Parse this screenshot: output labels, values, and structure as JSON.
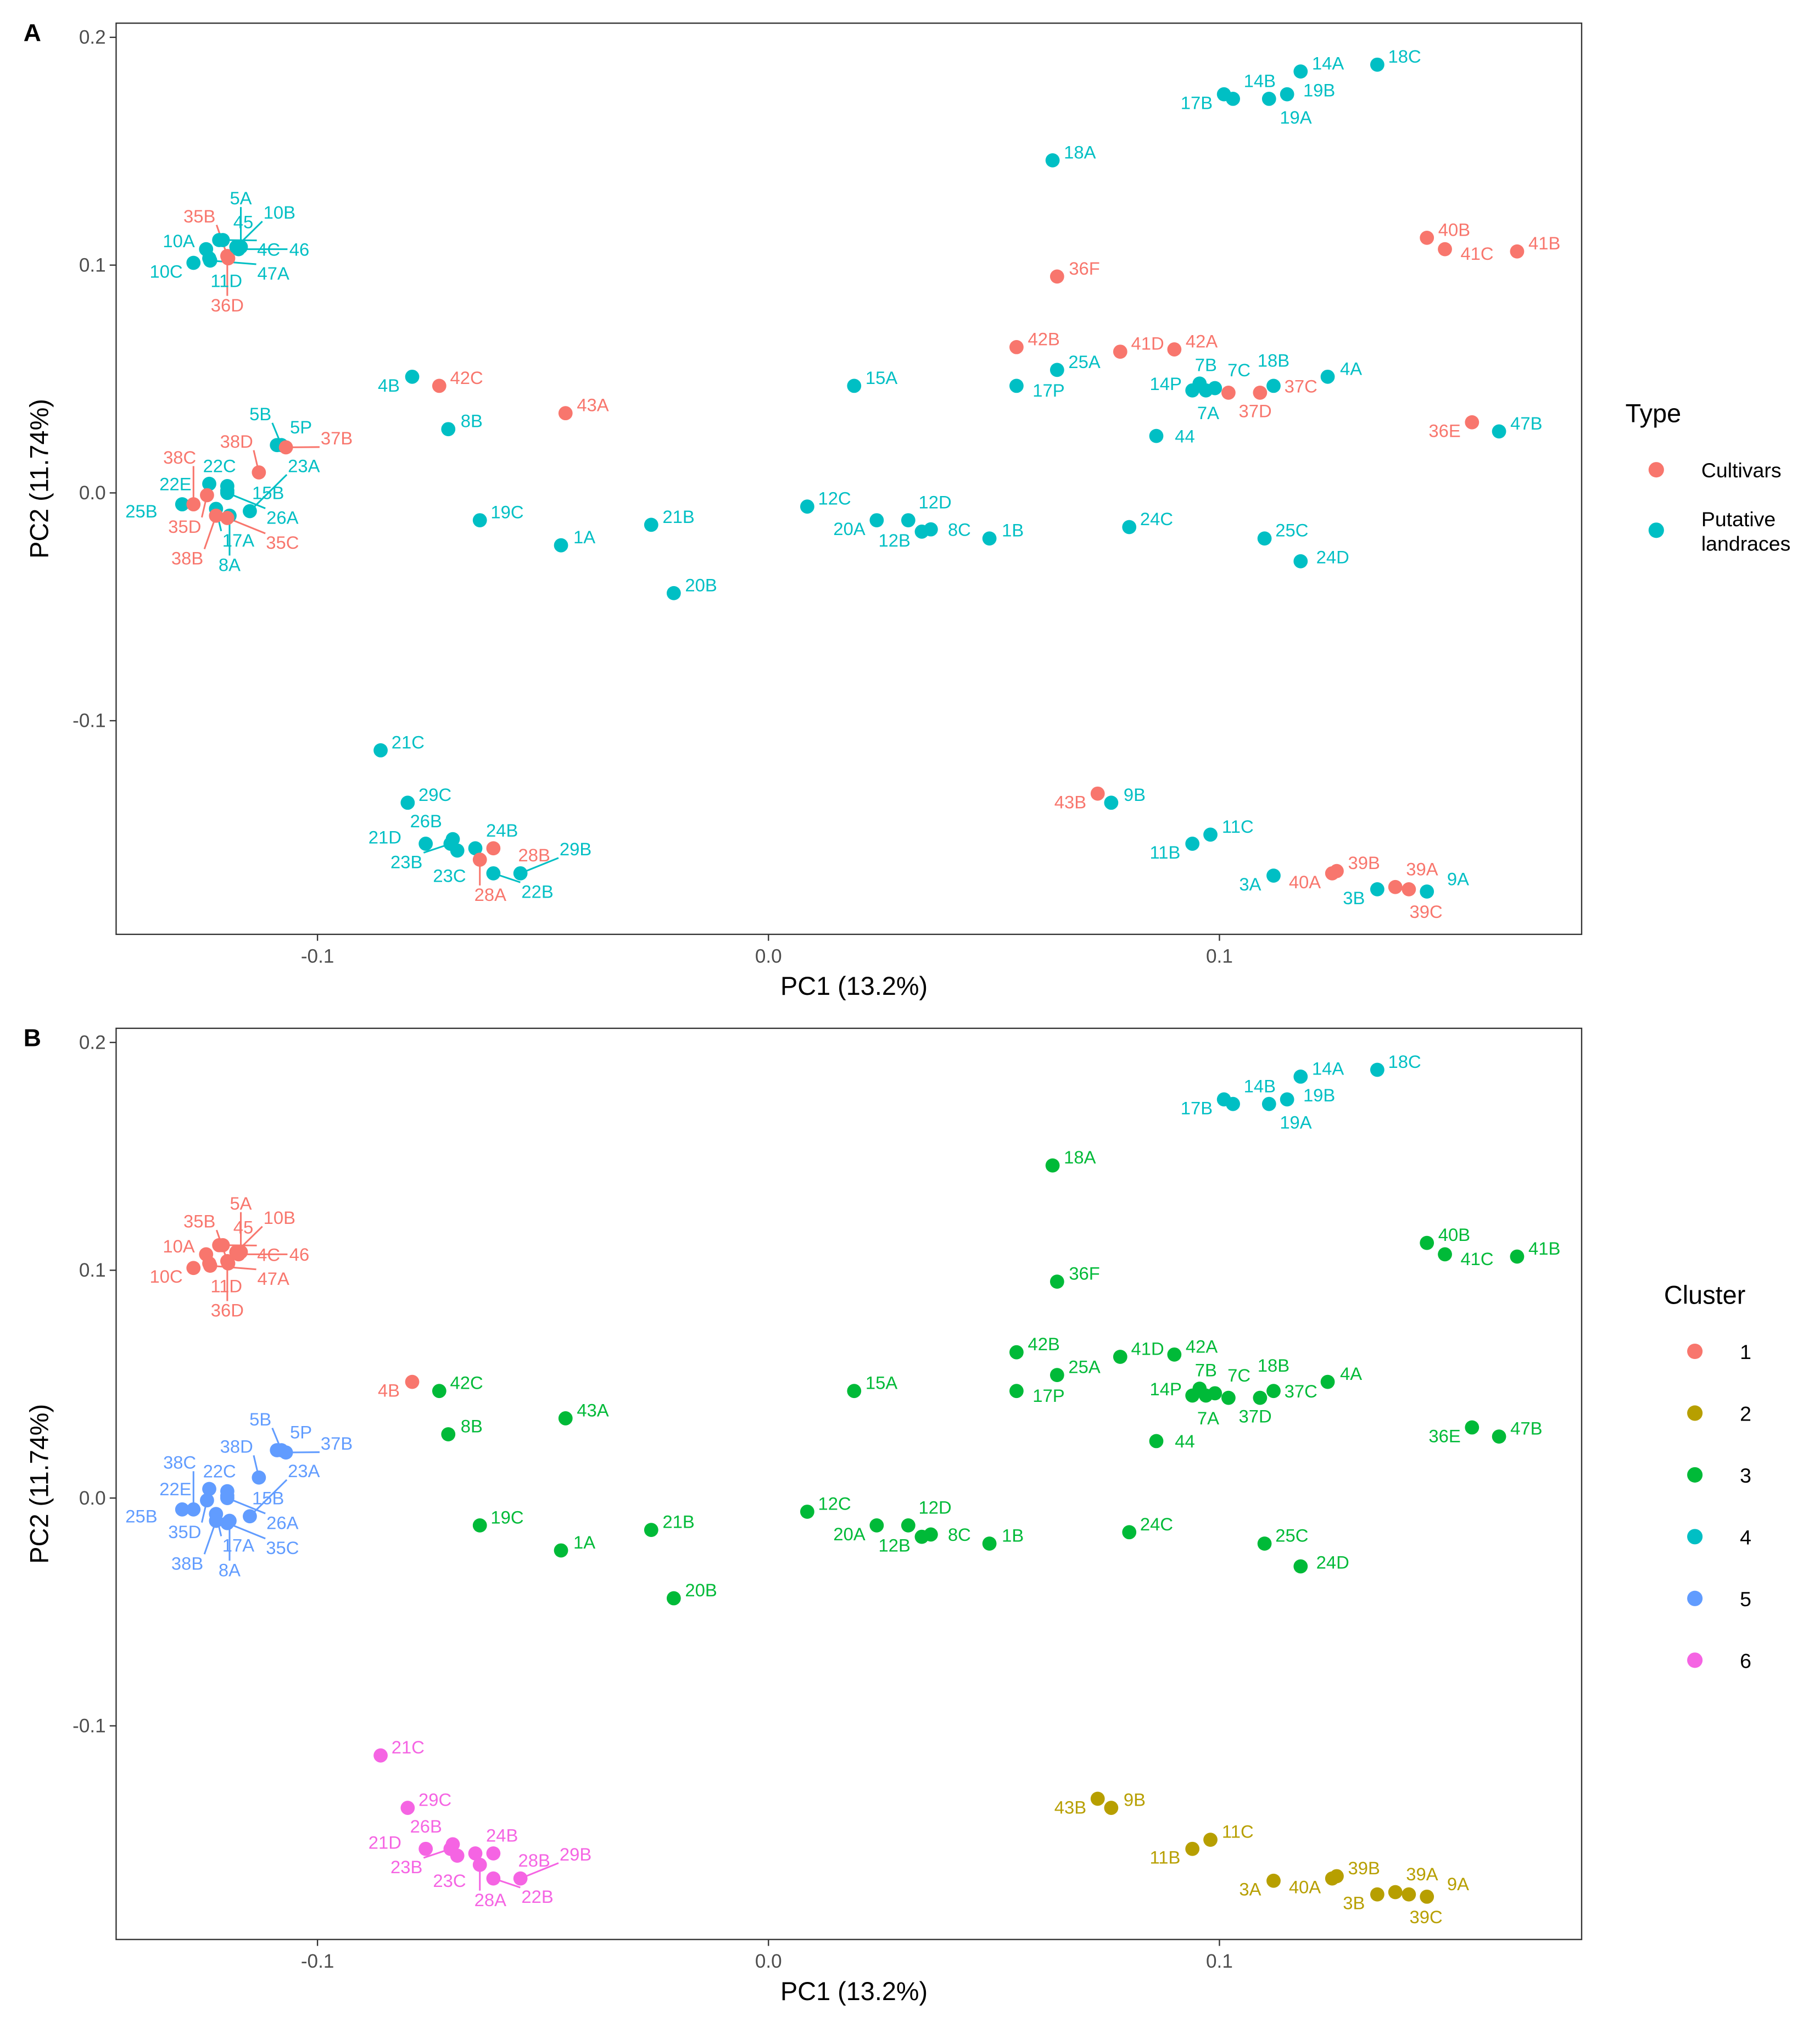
{
  "chart_data": [
    {
      "type": "scatter",
      "panel_label": "A",
      "xlabel": "PC1 (13.2%)",
      "ylabel": "PC2 (11.74%)",
      "xlim": [
        -0.145,
        0.18
      ],
      "ylim": [
        -0.194,
        0.206
      ],
      "xticks": [
        -0.1,
        0.0,
        0.1
      ],
      "xtick_labels": [
        "-0.1",
        "0.0",
        "0.1"
      ],
      "yticks": [
        -0.1,
        0.0,
        0.1,
        0.2
      ],
      "ytick_labels": [
        "-0.1",
        "0.0",
        "0.1",
        "0.2"
      ],
      "grid": false,
      "color_by": "type",
      "legend": {
        "title": "Type",
        "position": "right",
        "entries": [
          {
            "label": "Cultivars",
            "color": "#F8766D"
          },
          {
            "label": "Putative landraces",
            "lines": [
              "Putative",
              "landraces"
            ],
            "color": "#00BFC4"
          }
        ]
      }
    },
    {
      "type": "scatter",
      "panel_label": "B",
      "xlabel": "PC1 (13.2%)",
      "ylabel": "PC2 (11.74%)",
      "xlim": [
        -0.145,
        0.18
      ],
      "ylim": [
        -0.194,
        0.206
      ],
      "xticks": [
        -0.1,
        0.0,
        0.1
      ],
      "xtick_labels": [
        "-0.1",
        "0.0",
        "0.1"
      ],
      "yticks": [
        -0.1,
        0.0,
        0.1,
        0.2
      ],
      "ytick_labels": [
        "-0.1",
        "0.0",
        "0.1",
        "0.2"
      ],
      "grid": false,
      "color_by": "cluster",
      "legend": {
        "title": "Cluster",
        "position": "right",
        "entries": [
          {
            "label": "1",
            "color": "#F8766D"
          },
          {
            "label": "2",
            "color": "#B79F00"
          },
          {
            "label": "3",
            "color": "#00BA38"
          },
          {
            "label": "4",
            "color": "#00BFC4"
          },
          {
            "label": "5",
            "color": "#619CFF"
          },
          {
            "label": "6",
            "color": "#F564E3"
          }
        ]
      }
    }
  ],
  "point_fields": [
    "label",
    "pc1",
    "pc2",
    "type",
    "cluster"
  ],
  "points": [
    [
      "17B",
      0.101,
      0.175,
      "Putative landraces",
      4
    ],
    [
      "14B",
      0.103,
      0.173,
      "Putative landraces",
      4
    ],
    [
      "19A",
      0.111,
      0.173,
      "Putative landraces",
      4
    ],
    [
      "19B",
      0.115,
      0.175,
      "Putative landraces",
      4
    ],
    [
      "14A",
      0.118,
      0.185,
      "Putative landraces",
      4
    ],
    [
      "18C",
      0.135,
      0.188,
      "Putative landraces",
      4
    ],
    [
      "18A",
      0.063,
      0.146,
      "Putative landraces",
      3
    ],
    [
      "40B",
      0.146,
      0.112,
      "Cultivars",
      3
    ],
    [
      "41C",
      0.15,
      0.107,
      "Cultivars",
      3
    ],
    [
      "41B",
      0.166,
      0.106,
      "Cultivars",
      3
    ],
    [
      "36F",
      0.064,
      0.095,
      "Cultivars",
      3
    ],
    [
      "42B",
      0.055,
      0.064,
      "Cultivars",
      3
    ],
    [
      "41D",
      0.078,
      0.062,
      "Cultivars",
      3
    ],
    [
      "42A",
      0.09,
      0.063,
      "Cultivars",
      3
    ],
    [
      "25A",
      0.064,
      0.054,
      "Putative landraces",
      3
    ],
    [
      "17P",
      0.055,
      0.047,
      "Putative landraces",
      3
    ],
    [
      "15A",
      0.019,
      0.047,
      "Putative landraces",
      3
    ],
    [
      "14P",
      0.0956,
      0.048,
      "Putative landraces",
      3
    ],
    [
      "7C",
      0.099,
      0.046,
      "Putative landraces",
      3
    ],
    [
      "7B",
      0.097,
      0.045,
      "Putative landraces",
      3
    ],
    [
      "7A",
      0.094,
      0.045,
      "Putative landraces",
      3
    ],
    [
      "44",
      0.086,
      0.025,
      "Putative landraces",
      3
    ],
    [
      "37D",
      0.102,
      0.044,
      "Cultivars",
      3
    ],
    [
      "37C",
      0.109,
      0.044,
      "Cultivars",
      3
    ],
    [
      "18B",
      0.112,
      0.047,
      "Putative landraces",
      3
    ],
    [
      "4A",
      0.124,
      0.051,
      "Putative landraces",
      3
    ],
    [
      "36E",
      0.156,
      0.031,
      "Cultivars",
      3
    ],
    [
      "47B",
      0.162,
      0.027,
      "Putative landraces",
      3
    ],
    [
      "24C",
      0.08,
      -0.015,
      "Putative landraces",
      3
    ],
    [
      "25C",
      0.11,
      -0.02,
      "Putative landraces",
      3
    ],
    [
      "24D",
      0.118,
      -0.03,
      "Putative landraces",
      3
    ],
    [
      "12C",
      0.0086,
      -0.006,
      "Putative landraces",
      3
    ],
    [
      "20A",
      0.024,
      -0.012,
      "Putative landraces",
      3
    ],
    [
      "12D",
      0.031,
      -0.012,
      "Putative landraces",
      3
    ],
    [
      "12B",
      0.034,
      -0.017,
      "Putative landraces",
      3
    ],
    [
      "8C",
      0.036,
      -0.016,
      "Putative landraces",
      3
    ],
    [
      "1B",
      0.049,
      -0.02,
      "Putative landraces",
      3
    ],
    [
      "21B",
      -0.026,
      -0.014,
      "Putative landraces",
      3
    ],
    [
      "20B",
      -0.021,
      -0.044,
      "Putative landraces",
      3
    ],
    [
      "1A",
      -0.046,
      -0.023,
      "Putative landraces",
      3
    ],
    [
      "19C",
      -0.064,
      -0.012,
      "Putative landraces",
      3
    ],
    [
      "43A",
      -0.045,
      0.035,
      "Cultivars",
      3
    ],
    [
      "42C",
      -0.073,
      0.047,
      "Cultivars",
      3
    ],
    [
      "8B",
      -0.071,
      0.028,
      "Putative landraces",
      3
    ],
    [
      "4B",
      -0.079,
      0.051,
      "Putative landraces",
      1
    ],
    [
      "10C",
      -0.1275,
      0.101,
      "Putative landraces",
      1
    ],
    [
      "10A",
      -0.1247,
      0.107,
      "Putative landraces",
      1
    ],
    [
      "11D",
      -0.124,
      0.103,
      "Putative landraces",
      1
    ],
    [
      "45",
      -0.1218,
      0.111,
      "Putative landraces",
      1
    ],
    [
      "4C",
      -0.121,
      0.111,
      "Putative landraces",
      1
    ],
    [
      "47A",
      -0.1238,
      0.102,
      "Putative landraces",
      1
    ],
    [
      "36D",
      -0.12,
      0.104,
      "Cultivars",
      1
    ],
    [
      "35B",
      -0.1198,
      0.103,
      "Cultivars",
      1
    ],
    [
      "10B",
      -0.118,
      0.108,
      "Putative landraces",
      1
    ],
    [
      "46",
      -0.1175,
      0.107,
      "Putative landraces",
      1
    ],
    [
      "5A",
      -0.117,
      0.108,
      "Putative landraces",
      1
    ],
    [
      "5P",
      -0.109,
      0.021,
      "Putative landraces",
      5
    ],
    [
      "5B",
      -0.108,
      0.021,
      "Putative landraces",
      5
    ],
    [
      "37B",
      -0.107,
      0.02,
      "Cultivars",
      5
    ],
    [
      "38D",
      -0.113,
      0.009,
      "Cultivars",
      5
    ],
    [
      "15B",
      -0.12,
      0.003,
      "Putative landraces",
      5
    ],
    [
      "22C",
      -0.12,
      0.001,
      "Putative landraces",
      5
    ],
    [
      "22E",
      -0.124,
      0.004,
      "Putative landraces",
      5
    ],
    [
      "26A",
      -0.12,
      0.0,
      "Putative landraces",
      5
    ],
    [
      "35D",
      -0.1245,
      -0.001,
      "Cultivars",
      5
    ],
    [
      "25B",
      -0.13,
      -0.005,
      "Putative landraces",
      5
    ],
    [
      "38C",
      -0.1275,
      -0.005,
      "Cultivars",
      5
    ],
    [
      "17A",
      -0.1225,
      -0.007,
      "Putative landraces",
      5
    ],
    [
      "8A",
      -0.1195,
      -0.01,
      "Putative landraces",
      5
    ],
    [
      "23A",
      -0.115,
      -0.008,
      "Putative landraces",
      5
    ],
    [
      "38B",
      -0.1225,
      -0.01,
      "Cultivars",
      5
    ],
    [
      "35C",
      -0.12,
      -0.011,
      "Cultivars",
      5
    ],
    [
      "21C",
      -0.086,
      -0.113,
      "Putative landraces",
      6
    ],
    [
      "29C",
      -0.08,
      -0.136,
      "Putative landraces",
      6
    ],
    [
      "21D",
      -0.076,
      -0.154,
      "Putative landraces",
      6
    ],
    [
      "26B",
      -0.07,
      -0.152,
      "Putative landraces",
      6
    ],
    [
      "23C",
      -0.069,
      -0.157,
      "Putative landraces",
      6
    ],
    [
      "23B",
      -0.0705,
      -0.154,
      "Putative landraces",
      6
    ],
    [
      "24B",
      -0.065,
      -0.156,
      "Putative landraces",
      6
    ],
    [
      "28B",
      -0.061,
      -0.156,
      "Cultivars",
      6
    ],
    [
      "28A",
      -0.064,
      -0.161,
      "Cultivars",
      6
    ],
    [
      "22B",
      -0.061,
      -0.167,
      "Putative landraces",
      6
    ],
    [
      "29B",
      -0.055,
      -0.167,
      "Putative landraces",
      6
    ],
    [
      "43B",
      0.073,
      -0.132,
      "Cultivars",
      2
    ],
    [
      "9B",
      0.076,
      -0.136,
      "Putative landraces",
      2
    ],
    [
      "11B",
      0.094,
      -0.154,
      "Putative landraces",
      2
    ],
    [
      "11C",
      0.098,
      -0.15,
      "Putative landraces",
      2
    ],
    [
      "3A",
      0.112,
      -0.168,
      "Putative landraces",
      2
    ],
    [
      "39B",
      0.126,
      -0.166,
      "Cultivars",
      2
    ],
    [
      "40A",
      0.125,
      -0.167,
      "Cultivars",
      2
    ],
    [
      "3B",
      0.135,
      -0.174,
      "Putative landraces",
      2
    ],
    [
      "39A",
      0.139,
      -0.173,
      "Cultivars",
      2
    ],
    [
      "39C",
      0.142,
      -0.174,
      "Cultivars",
      2
    ],
    [
      "9A",
      0.146,
      -0.175,
      "Putative landraces",
      2
    ]
  ]
}
